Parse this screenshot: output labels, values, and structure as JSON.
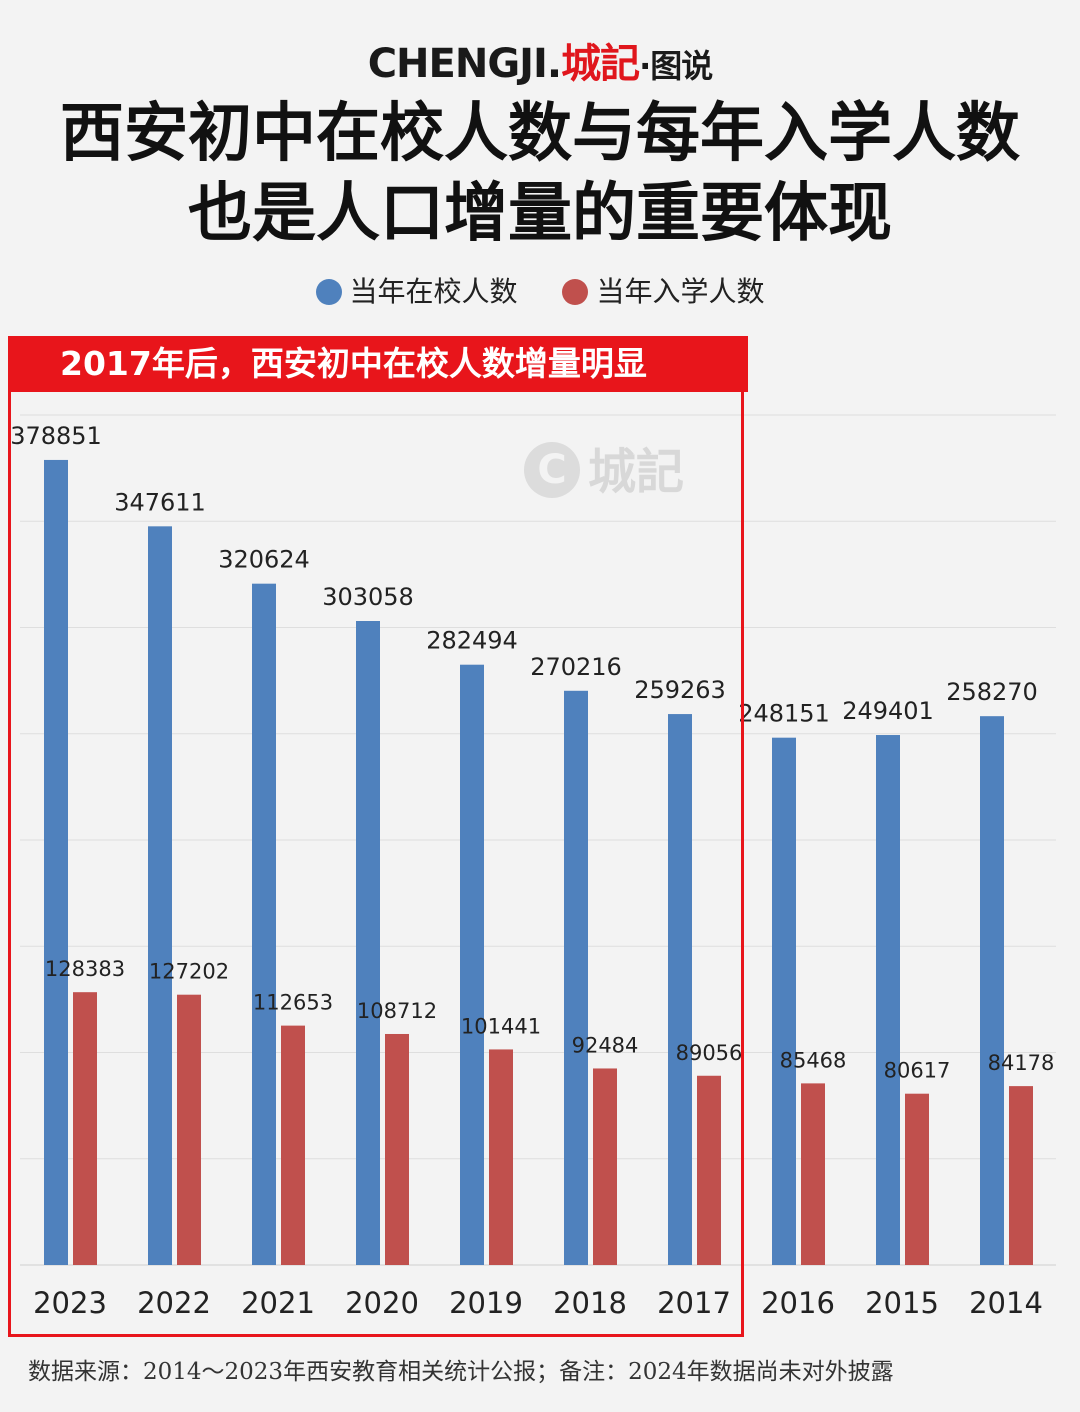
{
  "brand": {
    "latin": "CHENGJI.",
    "cn": "城記",
    "sub": "·图说"
  },
  "title": {
    "line1": "西安初中在校人数与每年入学人数",
    "line2": "也是人口增量的重要体现"
  },
  "highlight": {
    "banner": "2017年后，西安初中在校人数增量明显"
  },
  "watermark": {
    "text": "城記",
    "mark": "C"
  },
  "source": "数据来源：2014～2023年西安教育相关统计公报；备注：2024年数据尚未对外披露",
  "colors": {
    "enrolled": "#4f81bd",
    "intake": "#c0504d",
    "highlight": "#e8151b"
  },
  "chart_data": {
    "type": "bar",
    "categories": [
      "2023",
      "2022",
      "2021",
      "2020",
      "2019",
      "2018",
      "2017",
      "2016",
      "2015",
      "2014"
    ],
    "series": [
      {
        "name": "当年在校人数",
        "values": [
          378851,
          347611,
          320624,
          303058,
          282494,
          270216,
          259263,
          248151,
          249401,
          258270
        ]
      },
      {
        "name": "当年入学人数",
        "values": [
          128383,
          127202,
          112653,
          108712,
          101441,
          92484,
          89056,
          85468,
          80617,
          84178
        ]
      }
    ],
    "ylim": [
      0,
      400000
    ],
    "grid": true,
    "legend": "top-center",
    "data_labels": true,
    "highlight_categories": [
      "2023",
      "2022",
      "2021",
      "2020",
      "2019",
      "2018",
      "2017"
    ]
  }
}
